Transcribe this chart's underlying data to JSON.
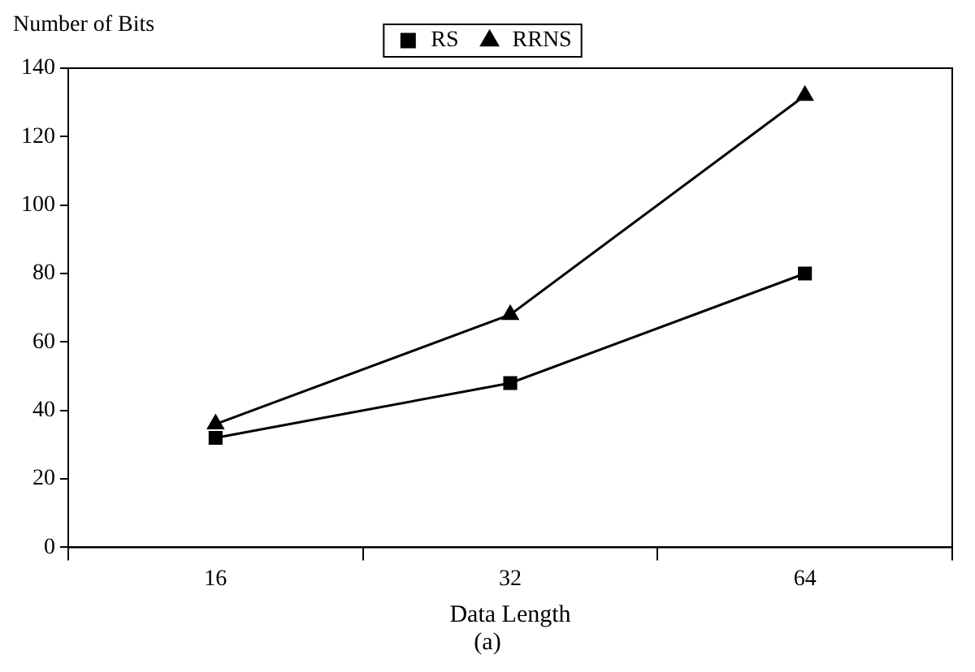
{
  "chart_data": {
    "type": "line",
    "xlabel": "Data Length",
    "ylabel": "Number of Bits",
    "categories": [
      "16",
      "32",
      "64"
    ],
    "series": [
      {
        "name": "RS",
        "color": "#000000",
        "values": [
          32,
          48,
          80
        ],
        "marker": "square"
      },
      {
        "name": "RRNS",
        "color": "#000000",
        "values": [
          36,
          68,
          132
        ],
        "marker": "triangle"
      }
    ],
    "ylim": [
      0,
      140
    ],
    "yticks": [
      0,
      20,
      40,
      60,
      80,
      100,
      120,
      140
    ],
    "grid": false,
    "legend": "top",
    "annotations": [
      "(a)"
    ]
  }
}
